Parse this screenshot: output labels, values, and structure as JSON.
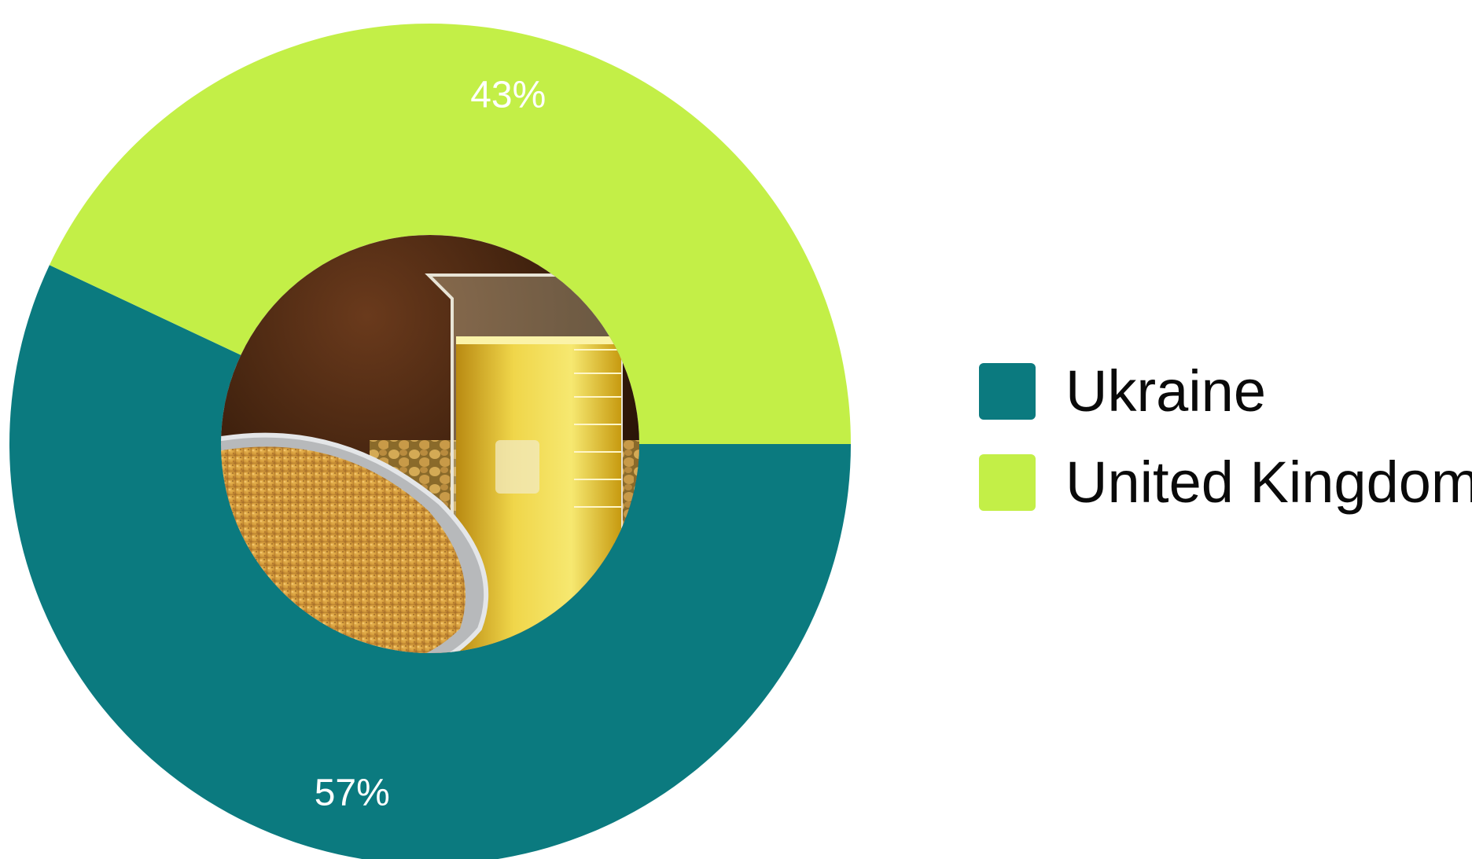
{
  "chart_data": {
    "type": "pie",
    "donut": true,
    "categories": [
      "Ukraine",
      "United Kingdom"
    ],
    "values": [
      57,
      43
    ],
    "value_labels": [
      "57%",
      "43%"
    ],
    "colors": [
      "#0b7a7f",
      "#c3ef47"
    ],
    "title": "",
    "legend": {
      "placement": "right",
      "entries": [
        "Ukraine",
        "United Kingdom"
      ]
    },
    "center_image": "photo-beaker-oil-and-soy-meal"
  }
}
